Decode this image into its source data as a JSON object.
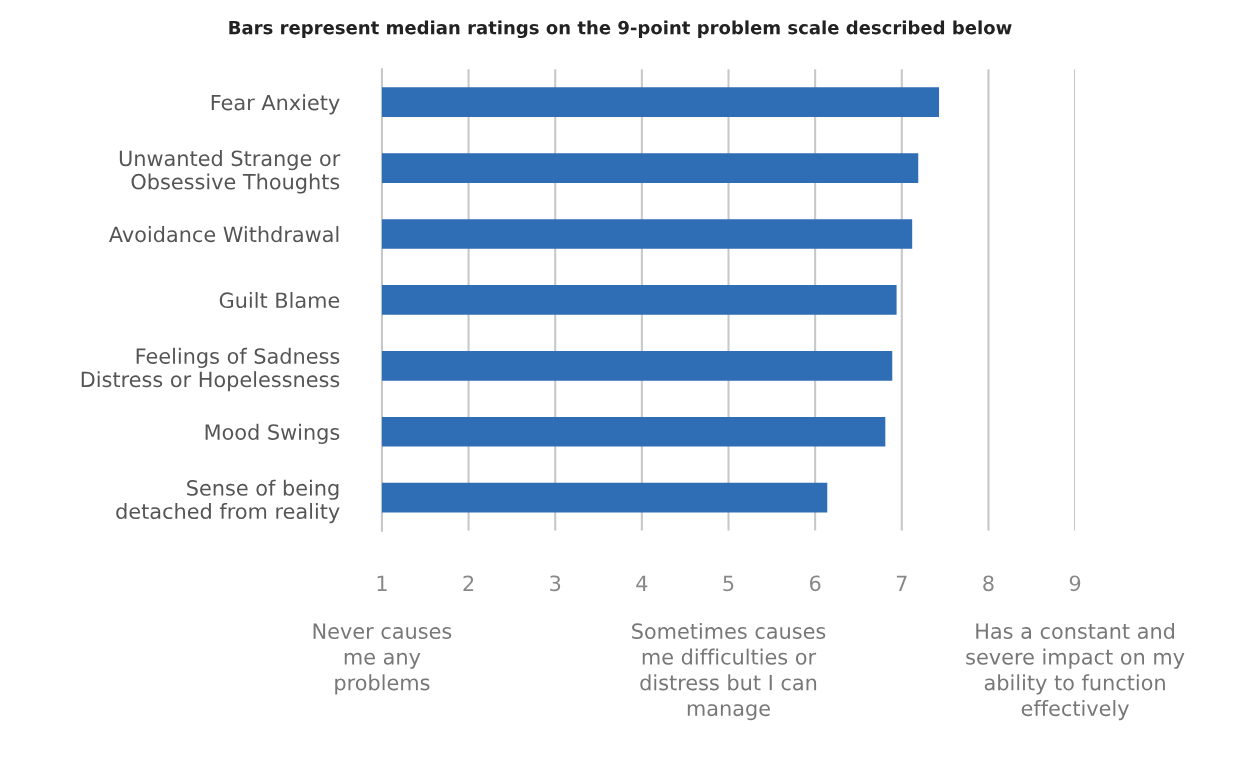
{
  "chart_data": {
    "type": "bar",
    "orientation": "horizontal",
    "title": "Bars represent median ratings on the 9-point problem scale described below",
    "categories": [
      "Fear Anxiety",
      "Unwanted Strange or\nObsessive Thoughts",
      "Avoidance Withdrawal",
      "Guilt Blame",
      "Feelings of Sadness\nDistress or Hopelessness",
      "Mood Swings",
      "Sense of being\ndetached from reality"
    ],
    "values": [
      7.43,
      7.19,
      7.12,
      6.94,
      6.89,
      6.81,
      6.14
    ],
    "color": "#2f6db5",
    "xlim": [
      1,
      9
    ],
    "xticks": [
      1,
      2,
      3,
      4,
      5,
      6,
      7,
      8,
      9
    ],
    "grid": "x",
    "legend": false,
    "annotations": [
      "Never causes\nme any\nproblems",
      "Sometimes causes\nme difficulties or\ndistress but I can\nmanage",
      "Has a constant and\nsevere impact on my\nability to function\neffectively"
    ]
  }
}
